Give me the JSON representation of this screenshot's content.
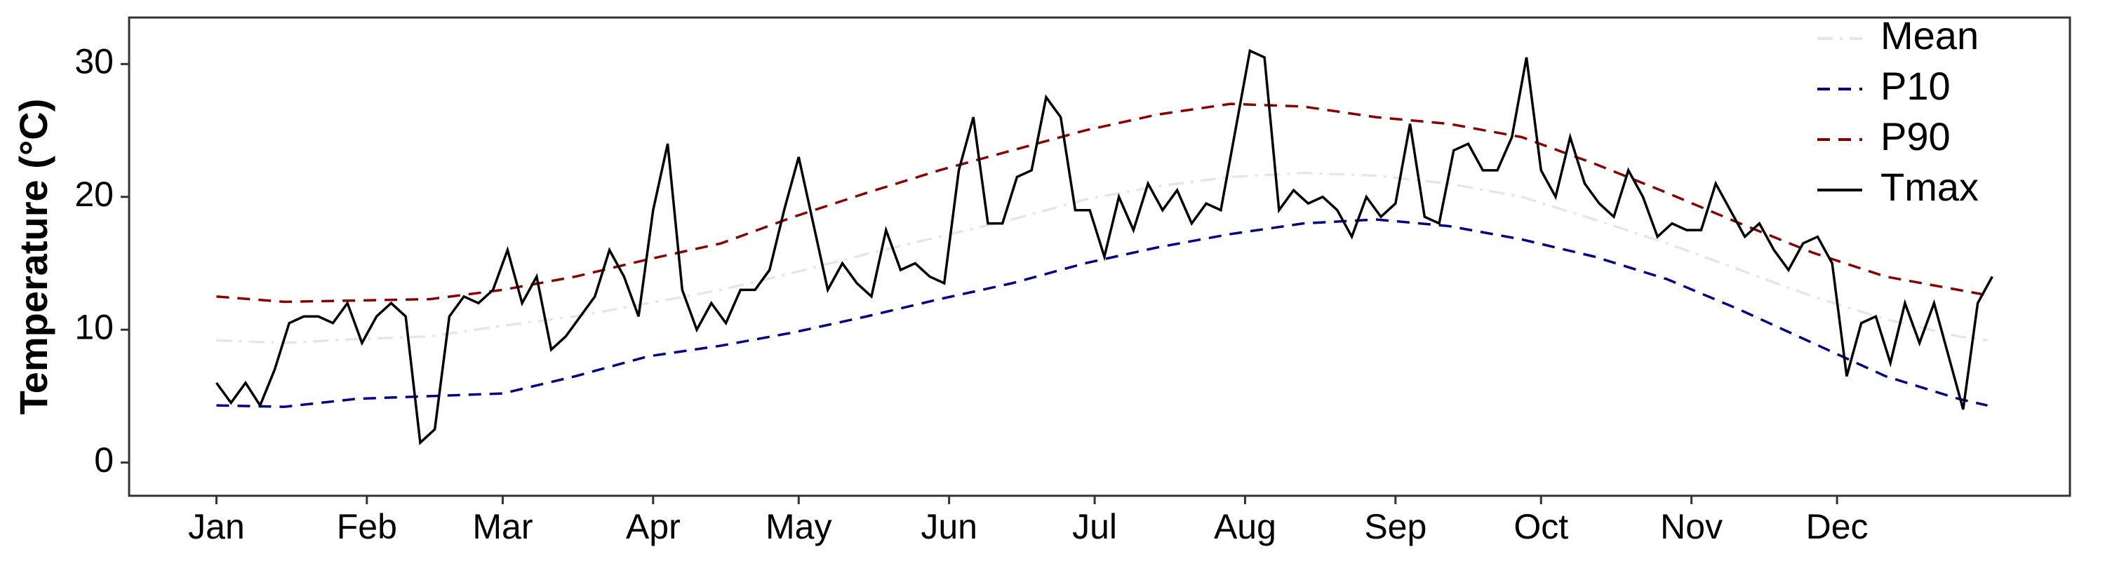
{
  "chart_data": {
    "type": "line",
    "ylabel": "Temperature (°C)",
    "xlim": [
      -17,
      383
    ],
    "ylim": [
      -2.5,
      33.5
    ],
    "xticks": [
      {
        "value": 1,
        "label": "Jan"
      },
      {
        "value": 32,
        "label": "Feb"
      },
      {
        "value": 60,
        "label": "Mar"
      },
      {
        "value": 91,
        "label": "Apr"
      },
      {
        "value": 121,
        "label": "May"
      },
      {
        "value": 152,
        "label": "Jun"
      },
      {
        "value": 182,
        "label": "Jul"
      },
      {
        "value": 213,
        "label": "Aug"
      },
      {
        "value": 244,
        "label": "Sep"
      },
      {
        "value": 274,
        "label": "Oct"
      },
      {
        "value": 305,
        "label": "Nov"
      },
      {
        "value": 335,
        "label": "Dec"
      }
    ],
    "yticks": [
      0,
      10,
      20,
      30
    ],
    "legend": "top right",
    "series": [
      {
        "name": "Mean",
        "color": "#e6e6e6",
        "dash": "dashdot",
        "x": [
          1,
          15,
          30,
          45,
          60,
          75,
          90,
          105,
          120,
          135,
          150,
          165,
          180,
          195,
          210,
          225,
          240,
          255,
          270,
          285,
          300,
          315,
          330,
          345,
          360,
          366
        ],
        "values": [
          9.2,
          9.0,
          9.3,
          9.5,
          10.3,
          11.0,
          12.0,
          13.0,
          14.3,
          15.7,
          17.0,
          18.3,
          19.8,
          20.8,
          21.5,
          21.8,
          21.6,
          21.0,
          20.0,
          18.3,
          16.5,
          14.5,
          12.5,
          10.8,
          9.5,
          9.2
        ]
      },
      {
        "name": "P10",
        "color": "#00008b",
        "dash": "dashed",
        "x": [
          1,
          15,
          30,
          45,
          60,
          75,
          90,
          105,
          120,
          135,
          150,
          165,
          180,
          195,
          210,
          225,
          240,
          255,
          270,
          285,
          300,
          315,
          330,
          345,
          360,
          366
        ],
        "values": [
          4.3,
          4.2,
          4.8,
          5.0,
          5.2,
          6.5,
          8.0,
          8.8,
          9.8,
          11.0,
          12.3,
          13.5,
          15.0,
          16.2,
          17.2,
          18.0,
          18.3,
          17.8,
          16.8,
          15.5,
          13.8,
          11.5,
          9.0,
          6.5,
          4.8,
          4.3
        ]
      },
      {
        "name": "P90",
        "color": "#8b0000",
        "dash": "dashed",
        "x": [
          1,
          15,
          30,
          45,
          60,
          75,
          90,
          105,
          120,
          135,
          150,
          165,
          180,
          195,
          210,
          225,
          240,
          255,
          270,
          285,
          300,
          315,
          330,
          345,
          360,
          366
        ],
        "values": [
          12.5,
          12.1,
          12.2,
          12.3,
          13.0,
          14.0,
          15.3,
          16.5,
          18.5,
          20.3,
          22.0,
          23.5,
          25.0,
          26.2,
          27.0,
          26.8,
          26.0,
          25.5,
          24.5,
          22.5,
          20.3,
          18.0,
          15.8,
          14.0,
          13.0,
          12.6
        ]
      },
      {
        "name": "Tmax",
        "color": "#000000",
        "dash": "solid",
        "x": [
          1,
          4,
          7,
          10,
          13,
          16,
          19,
          22,
          25,
          28,
          31,
          34,
          37,
          40,
          43,
          46,
          49,
          52,
          55,
          58,
          61,
          64,
          67,
          70,
          73,
          76,
          79,
          82,
          85,
          88,
          91,
          94,
          97,
          100,
          103,
          106,
          109,
          112,
          115,
          118,
          121,
          124,
          127,
          130,
          133,
          136,
          139,
          142,
          145,
          148,
          151,
          154,
          157,
          160,
          163,
          166,
          169,
          172,
          175,
          178,
          181,
          184,
          187,
          190,
          193,
          196,
          199,
          202,
          205,
          208,
          211,
          214,
          217,
          220,
          223,
          226,
          229,
          232,
          235,
          238,
          241,
          244,
          247,
          250,
          253,
          256,
          259,
          262,
          265,
          268,
          271,
          274,
          277,
          280,
          283,
          286,
          289,
          292,
          295,
          298,
          301,
          304,
          307,
          310,
          313,
          316,
          319,
          322,
          325,
          328,
          331,
          334,
          337,
          340,
          343,
          346,
          349,
          352,
          355,
          358,
          361,
          364,
          367
        ],
        "values": [
          6,
          4.5,
          6,
          4.3,
          7,
          10.5,
          11,
          11,
          10.5,
          12,
          9,
          11,
          12,
          11,
          1.5,
          2.5,
          11,
          12.5,
          12,
          13,
          16,
          12,
          14,
          8.5,
          9.5,
          11,
          12.5,
          16,
          14,
          11,
          19,
          24,
          13,
          10,
          12,
          10.5,
          13,
          13,
          14.5,
          19,
          23,
          18,
          13,
          15,
          13.5,
          12.5,
          17.5,
          14.5,
          15,
          14,
          13.5,
          22,
          26,
          18,
          18,
          21.5,
          22,
          27.5,
          26,
          19,
          19,
          15.5,
          20,
          17.5,
          21,
          19,
          20.5,
          18,
          19.5,
          19,
          25,
          31,
          30.5,
          19,
          20.5,
          19.5,
          20,
          19,
          17,
          20,
          18.5,
          19.5,
          25.5,
          18.5,
          18,
          23.5,
          24,
          22,
          22,
          24.5,
          30.5,
          22,
          20,
          24.5,
          21,
          19.5,
          18.5,
          22,
          20,
          17,
          18,
          17.5,
          17.5,
          21,
          19,
          17,
          18,
          16,
          14.5,
          16.5,
          17,
          15,
          6.5,
          10.5,
          11,
          7.5,
          12,
          9,
          12,
          8,
          4,
          12,
          14
        ]
      }
    ]
  }
}
